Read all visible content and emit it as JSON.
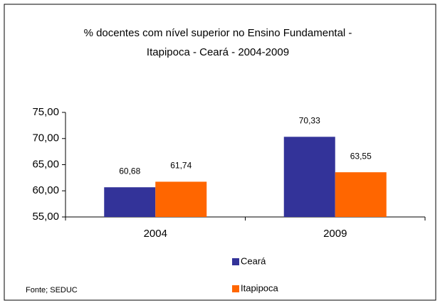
{
  "chart_data": {
    "type": "bar",
    "title": [
      "% docentes com nível  superior no Ensino Fundamental -",
      "Itapipoca  -  Ceará - 2004-2009"
    ],
    "categories": [
      "2004",
      "2009"
    ],
    "series": [
      {
        "name": "Ceará",
        "color": "#333399",
        "values": [
          60.68,
          70.33
        ],
        "value_labels": [
          "60,68",
          "70,33"
        ]
      },
      {
        "name": "Itapipoca",
        "color": "#ff6600",
        "values": [
          61.74,
          63.55
        ],
        "value_labels": [
          "61,74",
          "63,55"
        ]
      }
    ],
    "ylim": [
      55,
      75
    ],
    "yticks": [
      {
        "value": 55,
        "label": "55,00"
      },
      {
        "value": 60,
        "label": "60,00"
      },
      {
        "value": 65,
        "label": "65,00"
      },
      {
        "value": 70,
        "label": "70,00"
      },
      {
        "value": 75,
        "label": "75,00"
      }
    ],
    "grid": false,
    "source": "Fonte; SEDUC"
  }
}
